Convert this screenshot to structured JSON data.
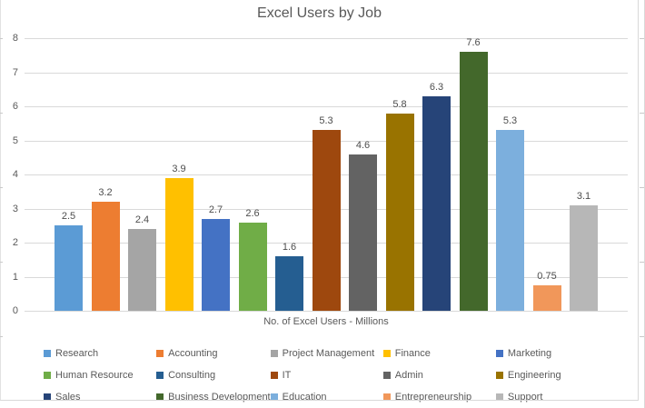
{
  "chart": {
    "title": "Excel Users by Job",
    "xlabel": "No. of Excel Users - Millions"
  },
  "chart_data": {
    "type": "bar",
    "title": "Excel Users by Job",
    "xlabel": "No. of Excel Users - Millions",
    "ylabel": "",
    "ylim": [
      0,
      8
    ],
    "ytick_step": 1,
    "yticks": [
      0,
      1,
      2,
      3,
      4,
      5,
      6,
      7,
      8
    ],
    "grid": true,
    "legend_position": "bottom",
    "legend_columns": 5,
    "gridline_color": "#D9D9D9",
    "text_color": "#595959",
    "series": [
      {
        "name": "Research",
        "value": 2.5,
        "label": "2.5",
        "color": "#5B9BD5"
      },
      {
        "name": "Accounting",
        "value": 3.2,
        "label": "3.2",
        "color": "#ED7D31"
      },
      {
        "name": "Project Management",
        "value": 2.4,
        "label": "2.4",
        "color": "#A5A5A5"
      },
      {
        "name": "Finance",
        "value": 3.9,
        "label": "3.9",
        "color": "#FFC000"
      },
      {
        "name": "Marketing",
        "value": 2.7,
        "label": "2.7",
        "color": "#4472C4"
      },
      {
        "name": "Human Resource",
        "value": 2.6,
        "label": "2.6",
        "color": "#70AD47"
      },
      {
        "name": "Consulting",
        "value": 1.6,
        "label": "1.6",
        "color": "#255E91"
      },
      {
        "name": "IT",
        "value": 5.3,
        "label": "5.3",
        "color": "#9E480E"
      },
      {
        "name": "Admin",
        "value": 4.6,
        "label": "4.6",
        "color": "#636363"
      },
      {
        "name": "Engineering",
        "value": 5.8,
        "label": "5.8",
        "color": "#997300"
      },
      {
        "name": "Sales",
        "value": 6.3,
        "label": "6.3",
        "color": "#264478"
      },
      {
        "name": "Business Development",
        "value": 7.6,
        "label": "7.6",
        "color": "#43682B"
      },
      {
        "name": "Education",
        "value": 5.3,
        "label": "5.3",
        "color": "#7CAFDD"
      },
      {
        "name": "Entrepreneurship",
        "value": 0.75,
        "label": "0.75",
        "color": "#F1975A"
      },
      {
        "name": "Support",
        "value": 3.1,
        "label": "3.1",
        "color": "#B7B7B7"
      }
    ]
  }
}
